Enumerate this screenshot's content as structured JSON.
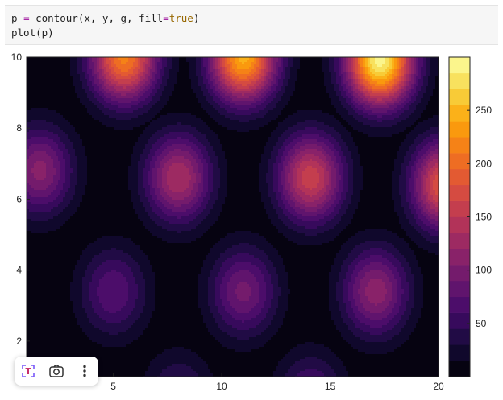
{
  "code_cell": {
    "line1": {
      "var": "p",
      "op": "=",
      "fn": "contour",
      "args": "(x, y, g, ",
      "kw": "fill",
      "eq": "=",
      "val": "true",
      "close": ")"
    },
    "line2": "plot(p)"
  },
  "toolbar": {
    "items": [
      {
        "icon": "text-select-icon"
      },
      {
        "icon": "camera-icon"
      },
      {
        "icon": "more-vertical-icon"
      }
    ]
  },
  "chart_data": {
    "type": "heatmap",
    "title": "",
    "xlabel": "",
    "ylabel": "",
    "xlim": [
      1,
      20
    ],
    "ylim": [
      1,
      10
    ],
    "x_ticks": [
      5,
      10,
      15,
      20
    ],
    "y_ticks": [
      2,
      4,
      6,
      8,
      10
    ],
    "colorbar": {
      "range": [
        0,
        300
      ],
      "ticks": [
        50,
        100,
        150,
        200,
        250
      ],
      "levels": 20,
      "colormap": "inferno"
    },
    "peaks": [
      {
        "x": 5.5,
        "y": 10.0,
        "value": 215
      },
      {
        "x": 11.0,
        "y": 10.0,
        "value": 245
      },
      {
        "x": 17.3,
        "y": 9.9,
        "value": 290
      },
      {
        "x": 1.6,
        "y": 6.8,
        "value": 110
      },
      {
        "x": 8.0,
        "y": 6.6,
        "value": 135
      },
      {
        "x": 14.1,
        "y": 6.6,
        "value": 160
      },
      {
        "x": 20.3,
        "y": 6.4,
        "value": 185
      },
      {
        "x": 5.0,
        "y": 3.4,
        "value": 75
      },
      {
        "x": 11.0,
        "y": 3.4,
        "value": 95
      },
      {
        "x": 17.1,
        "y": 3.4,
        "value": 115
      },
      {
        "x": 8.0,
        "y": 0.4,
        "value": 55
      },
      {
        "x": 14.1,
        "y": 0.4,
        "value": 70
      }
    ]
  }
}
